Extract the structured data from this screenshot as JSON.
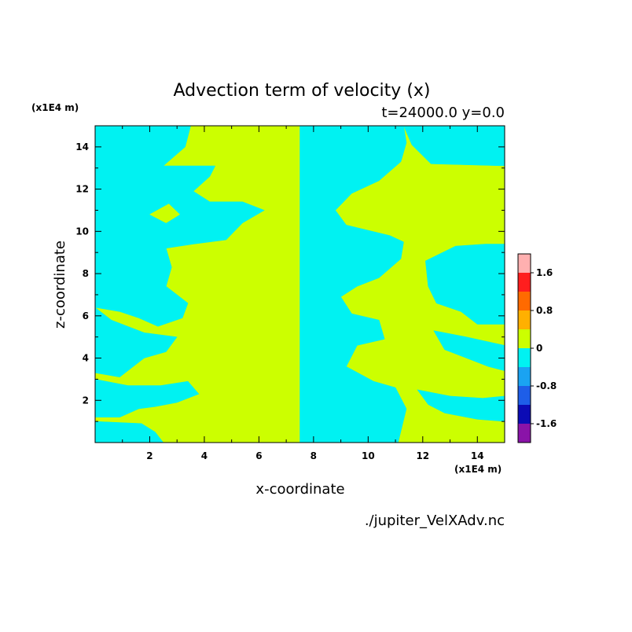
{
  "chart_data": {
    "type": "heatmap",
    "title": "Advection term of velocity (x)",
    "subtitle": "t=24000.0 y=0.0",
    "xlabel": "x-coordinate",
    "ylabel": "z-coordinate",
    "x_unit": "(x1E4 m)",
    "y_unit": "(x1E4 m)",
    "file_label": "./jupiter_VelXAdv.nc",
    "xlim": [
      0,
      15
    ],
    "ylim": [
      0,
      15
    ],
    "x_ticks": [
      2,
      4,
      6,
      8,
      10,
      12,
      14
    ],
    "y_ticks": [
      2,
      4,
      6,
      8,
      10,
      12,
      14
    ],
    "colorbar": {
      "levels": [
        -2.0,
        -1.6,
        -1.2,
        -0.8,
        -0.4,
        0,
        0.4,
        0.8,
        1.2,
        1.6,
        2.0
      ],
      "colors": [
        "#8a13a8",
        "#0b0bb5",
        "#1e5ee8",
        "#1aa3f2",
        "#00f2f2",
        "#ccff00",
        "#ffb000",
        "#ff6a00",
        "#ff1e1e",
        "#ffb0b0"
      ],
      "tick_labels": [
        "-1.6",
        "-0.8",
        "0",
        "0.8",
        "1.6"
      ]
    },
    "field_colors": {
      "negative": "#00f2f2",
      "positive": "#ccff00"
    },
    "regions": [
      {
        "sign": "negative",
        "polygon": [
          [
            0,
            15
          ],
          [
            3.5,
            15
          ],
          [
            3.3,
            14
          ],
          [
            2.5,
            13.1
          ],
          [
            0,
            13.1
          ]
        ]
      },
      {
        "sign": "negative",
        "polygon": [
          [
            0,
            13.1
          ],
          [
            4.4,
            13.1
          ],
          [
            4.2,
            12.6
          ],
          [
            3.6,
            11.9
          ],
          [
            4.2,
            11.4
          ],
          [
            5.4,
            11.4
          ],
          [
            6.2,
            11.0
          ],
          [
            5.4,
            10.4
          ],
          [
            4.8,
            9.6
          ],
          [
            3.6,
            9.4
          ],
          [
            2.6,
            9.2
          ],
          [
            2.8,
            8.3
          ],
          [
            2.6,
            7.4
          ],
          [
            3.4,
            6.6
          ],
          [
            3.2,
            5.9
          ],
          [
            2.3,
            5.5
          ],
          [
            1.6,
            5.9
          ],
          [
            0.9,
            6.2
          ],
          [
            0,
            6.4
          ]
        ]
      },
      {
        "sign": "positive",
        "polygon": [
          [
            2.0,
            10.8
          ],
          [
            2.7,
            11.3
          ],
          [
            3.1,
            10.8
          ],
          [
            2.6,
            10.4
          ]
        ]
      },
      {
        "sign": "negative",
        "polygon": [
          [
            0,
            6.4
          ],
          [
            0.6,
            5.8
          ],
          [
            1.8,
            5.2
          ],
          [
            3.0,
            5.0
          ],
          [
            2.6,
            4.3
          ],
          [
            1.8,
            4.0
          ],
          [
            1.4,
            3.6
          ],
          [
            0.9,
            3.1
          ],
          [
            0,
            3.3
          ]
        ]
      },
      {
        "sign": "negative",
        "polygon": [
          [
            0,
            3.0
          ],
          [
            1.2,
            2.7
          ],
          [
            2.4,
            2.7
          ],
          [
            3.4,
            2.9
          ],
          [
            3.8,
            2.3
          ],
          [
            3.0,
            1.9
          ],
          [
            2.2,
            1.7
          ],
          [
            1.6,
            1.6
          ],
          [
            0.9,
            1.2
          ],
          [
            0,
            1.2
          ]
        ]
      },
      {
        "sign": "negative",
        "polygon": [
          [
            0,
            1.0
          ],
          [
            1.7,
            0.9
          ],
          [
            2.2,
            0.5
          ],
          [
            2.5,
            0
          ],
          [
            0,
            0
          ]
        ]
      },
      {
        "sign": "negative",
        "polygon": [
          [
            7.5,
            15
          ],
          [
            7.5,
            0
          ],
          [
            11.1,
            0
          ],
          [
            11.4,
            1.6
          ],
          [
            11.0,
            2.6
          ],
          [
            10.2,
            2.9
          ],
          [
            9.2,
            3.6
          ],
          [
            9.6,
            4.6
          ],
          [
            10.6,
            4.9
          ],
          [
            10.4,
            5.8
          ],
          [
            9.4,
            6.1
          ],
          [
            9.0,
            6.9
          ],
          [
            9.6,
            7.4
          ],
          [
            10.4,
            7.8
          ],
          [
            11.2,
            8.7
          ],
          [
            11.3,
            9.5
          ],
          [
            10.8,
            9.8
          ],
          [
            9.2,
            10.3
          ],
          [
            8.8,
            11.0
          ],
          [
            9.4,
            11.8
          ],
          [
            10.4,
            12.4
          ],
          [
            11.2,
            13.3
          ],
          [
            11.4,
            14.2
          ],
          [
            11.3,
            15
          ]
        ]
      },
      {
        "sign": "positive",
        "polygon": [
          [
            11.8,
            11.0
          ],
          [
            12.3,
            11.4
          ],
          [
            12.8,
            11.0
          ],
          [
            12.3,
            10.6
          ]
        ]
      },
      {
        "sign": "negative",
        "polygon": [
          [
            12.1,
            8.6
          ],
          [
            13.2,
            9.3
          ],
          [
            14.3,
            9.4
          ],
          [
            15,
            9.4
          ],
          [
            15,
            5.6
          ],
          [
            14.0,
            5.6
          ],
          [
            13.4,
            6.2
          ],
          [
            12.5,
            6.6
          ],
          [
            12.2,
            7.4
          ]
        ]
      },
      {
        "sign": "negative",
        "polygon": [
          [
            12.4,
            5.3
          ],
          [
            13.6,
            5.0
          ],
          [
            15,
            4.6
          ],
          [
            15,
            3.4
          ],
          [
            14.4,
            3.6
          ],
          [
            13.6,
            4.0
          ],
          [
            12.8,
            4.4
          ]
        ]
      },
      {
        "sign": "negative",
        "polygon": [
          [
            11.8,
            2.5
          ],
          [
            13.0,
            2.2
          ],
          [
            14.2,
            2.1
          ],
          [
            15,
            2.2
          ],
          [
            15,
            1.0
          ],
          [
            14.0,
            1.1
          ],
          [
            12.8,
            1.4
          ],
          [
            12.2,
            1.8
          ]
        ]
      },
      {
        "sign": "negative",
        "polygon": [
          [
            11.3,
            15
          ],
          [
            11.6,
            14.1
          ],
          [
            12.3,
            13.2
          ],
          [
            15,
            13.1
          ],
          [
            15,
            15
          ]
        ]
      }
    ]
  }
}
